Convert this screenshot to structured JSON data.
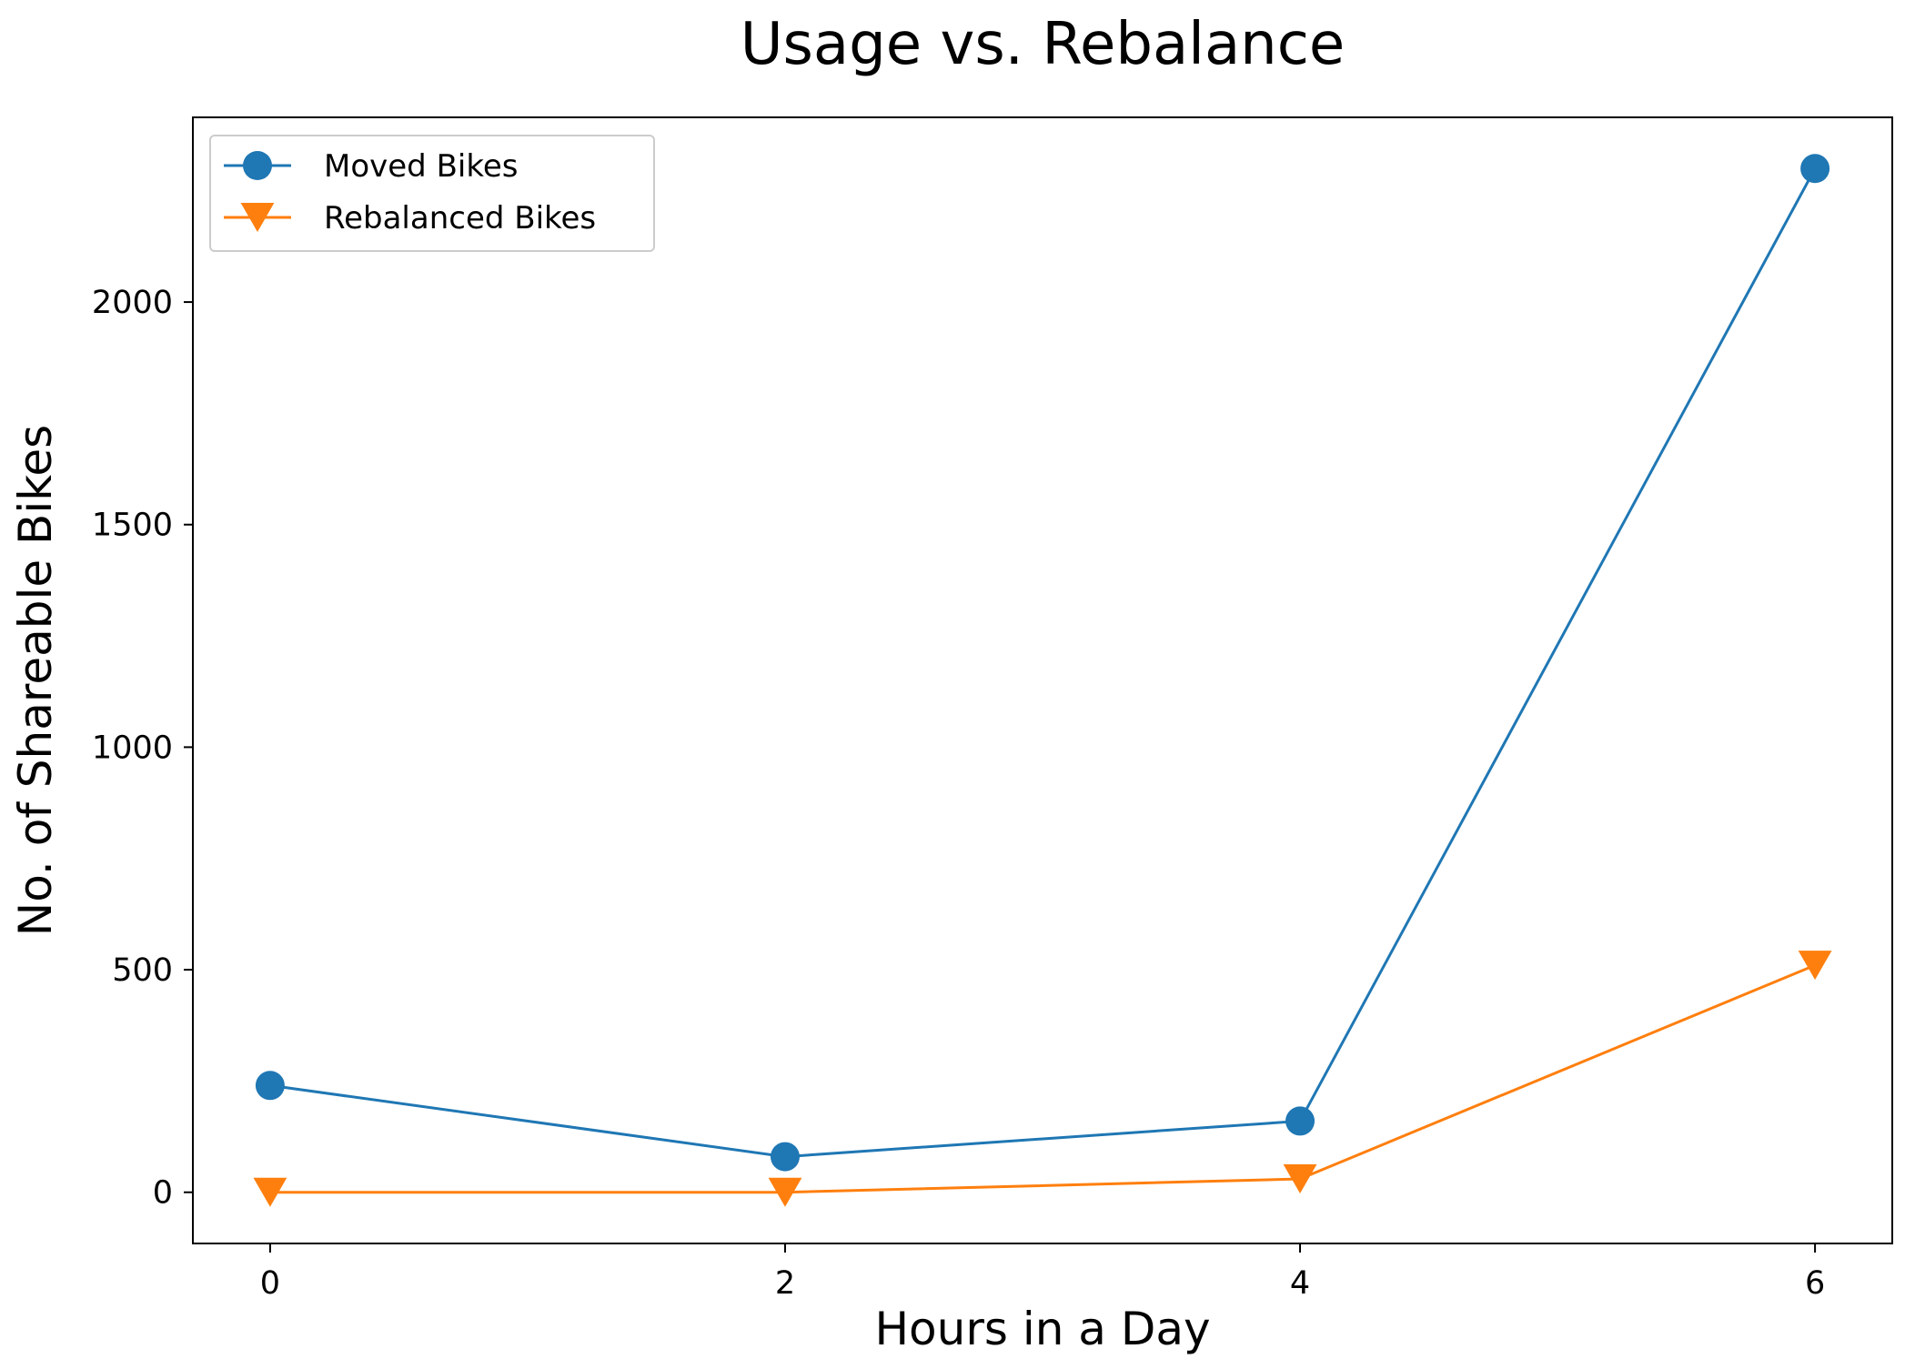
{
  "chart_data": {
    "type": "line",
    "title": "Usage vs. Rebalance",
    "xlabel": "Hours in a Day",
    "ylabel": "No. of Shareable Bikes",
    "x": [
      0,
      2,
      4,
      6
    ],
    "series": [
      {
        "name": "Moved Bikes",
        "values": [
          240,
          80,
          160,
          2300
        ],
        "color": "#1f77b4",
        "marker": "circle"
      },
      {
        "name": "Rebalanced Bikes",
        "values": [
          0,
          0,
          30,
          510
        ],
        "color": "#ff7f0e",
        "marker": "triangle-down"
      }
    ],
    "xlim": [
      -0.3,
      6.3
    ],
    "ylim": [
      -115,
      2415
    ],
    "xticks": [
      0,
      2,
      4,
      6
    ],
    "yticks": [
      0,
      500,
      1000,
      1500,
      2000
    ],
    "grid": false,
    "legend_position": "top-left"
  }
}
